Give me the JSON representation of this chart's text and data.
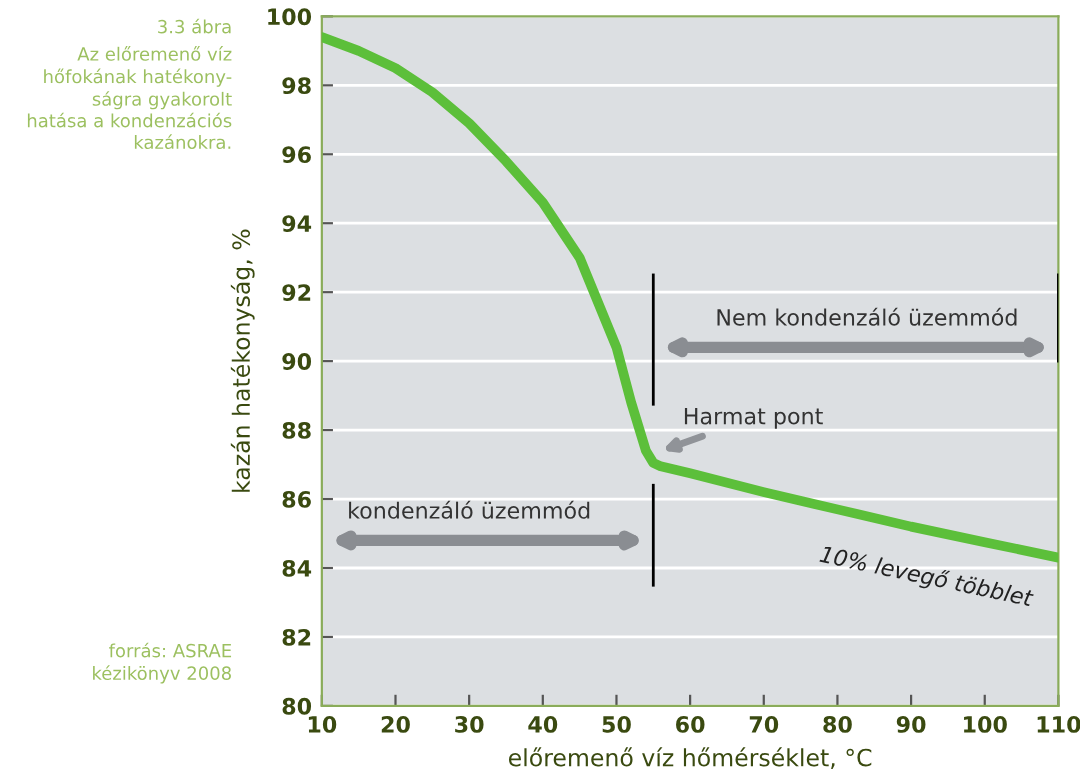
{
  "chart_data": {
    "type": "line",
    "title": "3.3 ábra",
    "subtitle": "Az előremenő víz\nhőfokának hatékony-\nságra gyakorolt\nhatása a kondenzációs\nkazánokra.",
    "xlabel": "előremenő víz hőmérséklet, °C",
    "ylabel": "kazán hatékonyság, %",
    "annotations": [
      "forrás: ASRAE\nkézikönyv 2008",
      {
        "text": "Harmat pont",
        "x": 55,
        "y": 87.05
      },
      "kondenzáló üzemmód",
      "Nem kondenzáló üzemmód"
    ],
    "series": [
      {
        "name": "10% levegő többlet",
        "color": "#5cbf3a",
        "x": [
          10,
          15,
          20,
          25,
          30,
          35,
          40,
          45,
          50,
          52,
          54,
          55,
          56,
          60,
          70,
          80,
          90,
          100,
          110
        ],
        "values": [
          99.4,
          99.0,
          98.5,
          97.8,
          96.9,
          95.8,
          94.6,
          93.0,
          90.4,
          88.8,
          87.4,
          87.05,
          86.95,
          86.75,
          86.2,
          85.7,
          85.2,
          84.75,
          84.3
        ]
      }
    ],
    "xlim": [
      10,
      110
    ],
    "xticks": [
      10,
      20,
      30,
      40,
      50,
      60,
      70,
      80,
      90,
      100,
      110
    ],
    "ylim": [
      80,
      100
    ],
    "yticks": [
      80,
      82,
      84,
      86,
      88,
      90,
      92,
      94,
      96,
      98,
      100
    ],
    "grid": "y",
    "legend": false,
    "marker": "none",
    "line_style": "solid"
  }
}
